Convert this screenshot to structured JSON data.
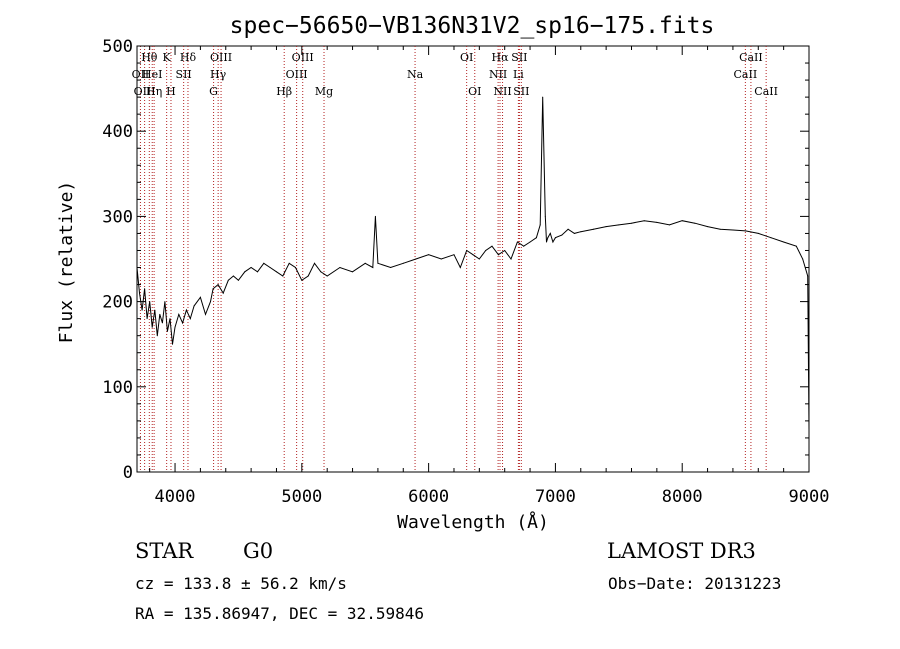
{
  "chart_data": {
    "type": "line",
    "title": "spec−56650−VB136N31V2_sp16−175.fits",
    "xlabel": "Wavelength (Å)",
    "ylabel": "Flux (relative)",
    "xlim": [
      3700,
      9000
    ],
    "ylim": [
      0,
      500
    ],
    "xticks": [
      4000,
      5000,
      6000,
      7000,
      8000,
      9000
    ],
    "yticks": [
      0,
      100,
      200,
      300,
      400,
      500
    ],
    "grid": false,
    "series": [
      {
        "name": "flux",
        "x": [
          3700,
          3720,
          3740,
          3760,
          3780,
          3800,
          3820,
          3840,
          3860,
          3880,
          3900,
          3920,
          3940,
          3960,
          3980,
          4000,
          4030,
          4060,
          4090,
          4120,
          4150,
          4200,
          4240,
          4280,
          4300,
          4340,
          4380,
          4420,
          4460,
          4500,
          4550,
          4600,
          4650,
          4700,
          4750,
          4800,
          4850,
          4900,
          4950,
          5000,
          5050,
          5100,
          5150,
          5200,
          5300,
          5400,
          5500,
          5560,
          5580,
          5600,
          5700,
          5800,
          5900,
          6000,
          6100,
          6200,
          6250,
          6300,
          6350,
          6400,
          6450,
          6500,
          6550,
          6600,
          6650,
          6700,
          6750,
          6800,
          6850,
          6880,
          6900,
          6920,
          6930,
          6940,
          6960,
          6980,
          7000,
          7050,
          7100,
          7150,
          7200,
          7300,
          7400,
          7500,
          7600,
          7700,
          7800,
          7900,
          8000,
          8100,
          8200,
          8300,
          8400,
          8500,
          8600,
          8700,
          8800,
          8900,
          8950,
          8990,
          9000
        ],
        "values": [
          240,
          210,
          190,
          215,
          180,
          200,
          170,
          190,
          160,
          185,
          175,
          200,
          165,
          180,
          150,
          170,
          185,
          175,
          190,
          180,
          195,
          205,
          185,
          200,
          215,
          220,
          210,
          225,
          230,
          225,
          235,
          240,
          235,
          245,
          240,
          235,
          230,
          245,
          240,
          225,
          230,
          245,
          235,
          230,
          240,
          235,
          245,
          240,
          300,
          245,
          240,
          245,
          250,
          255,
          250,
          255,
          240,
          260,
          255,
          250,
          260,
          265,
          255,
          260,
          250,
          270,
          265,
          270,
          275,
          290,
          440,
          300,
          270,
          275,
          280,
          270,
          275,
          278,
          285,
          280,
          282,
          285,
          288,
          290,
          292,
          295,
          293,
          290,
          295,
          292,
          288,
          285,
          284,
          283,
          280,
          275,
          270,
          265,
          250,
          230,
          50
        ]
      }
    ],
    "lines": [
      {
        "name": "OII",
        "wavelength": 3727,
        "row": 2
      },
      {
        "name": "Hθ",
        "wavelength": 3797,
        "row": 1
      },
      {
        "name": "OIII",
        "wavelength": 3760,
        "row": 3
      },
      {
        "name": "HeI",
        "wavelength": 3820,
        "row": 2
      },
      {
        "name": "Hη",
        "wavelength": 3835,
        "row": 3
      },
      {
        "name": "K",
        "wavelength": 3934,
        "row": 1
      },
      {
        "name": "SII",
        "wavelength": 4068,
        "row": 2
      },
      {
        "name": "H",
        "wavelength": 3968,
        "row": 3
      },
      {
        "name": "Hδ",
        "wavelength": 4102,
        "row": 1
      },
      {
        "name": "OIII",
        "wavelength": 4363,
        "row": 1
      },
      {
        "name": "Hγ",
        "wavelength": 4340,
        "row": 2
      },
      {
        "name": "G",
        "wavelength": 4304,
        "row": 3
      },
      {
        "name": "Hβ",
        "wavelength": 4861,
        "row": 3
      },
      {
        "name": "OIII",
        "wavelength": 5007,
        "row": 1
      },
      {
        "name": "OIII",
        "wavelength": 4959,
        "row": 2
      },
      {
        "name": "Mg",
        "wavelength": 5175,
        "row": 3
      },
      {
        "name": "Na",
        "wavelength": 5893,
        "row": 2
      },
      {
        "name": "OI",
        "wavelength": 6300,
        "row": 1
      },
      {
        "name": "OI",
        "wavelength": 6364,
        "row": 3
      },
      {
        "name": "Hα",
        "wavelength": 6563,
        "row": 1
      },
      {
        "name": "NII",
        "wavelength": 6548,
        "row": 2
      },
      {
        "name": "NII",
        "wavelength": 6583,
        "row": 3
      },
      {
        "name": "SII",
        "wavelength": 6716,
        "row": 1
      },
      {
        "name": "Li",
        "wavelength": 6708,
        "row": 2
      },
      {
        "name": "SII",
        "wavelength": 6731,
        "row": 3
      },
      {
        "name": "CaII",
        "wavelength": 8542,
        "row": 1
      },
      {
        "name": "CaII",
        "wavelength": 8498,
        "row": 2
      },
      {
        "name": "CaII",
        "wavelength": 8662,
        "row": 3
      }
    ]
  },
  "info": {
    "class": "STAR",
    "subclass": "G0",
    "survey": "LAMOST DR3",
    "cz": "cz = 133.8 ± 56.2 km/s",
    "obs_date": "Obs−Date: 20131223",
    "coords": "RA = 135.86947, DEC =  32.59846"
  }
}
